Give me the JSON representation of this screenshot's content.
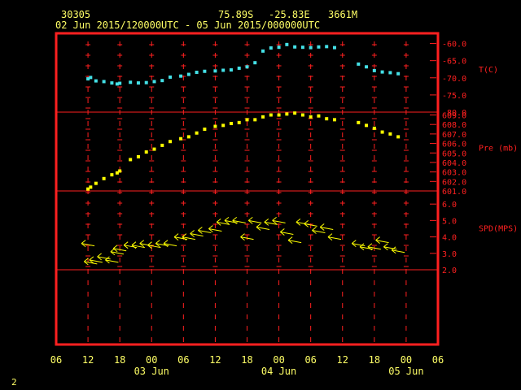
{
  "header": {
    "station": "30305",
    "latitude": "75.89S",
    "longitude": "-25.83E",
    "elevation": "3661M",
    "time_range": "02 Jun 2015/120000UTC - 05 Jun 2015/000000UTC"
  },
  "footer": {
    "page": "2"
  },
  "chart_data": {
    "type": "scatter",
    "x_axis": {
      "tick_labels": [
        "06",
        "12",
        "18",
        "00",
        "06",
        "12",
        "18",
        "00",
        "06",
        "12",
        "18",
        "00",
        "06"
      ],
      "day_labels": [
        "03 Jun",
        "04 Jun",
        "05 Jun"
      ]
    },
    "panels": [
      {
        "name": "T(C)",
        "ylim": [
          -80.0,
          -57.5
        ],
        "tick_labels": [
          "-60.0",
          "-65.0",
          "-70.0",
          "-75.0",
          "-80.0"
        ],
        "tick_values": [
          -60,
          -65,
          -70,
          -75,
          -80
        ],
        "color": "#44e0e6",
        "x": [
          12.0,
          12.5,
          13.5,
          15.0,
          16.5,
          17.5,
          18.0,
          20.0,
          21.5,
          23.0,
          24.5,
          26.0,
          27.5,
          29.5,
          31.0,
          32.5,
          34.0,
          36.0,
          37.5,
          39.0,
          40.5,
          42.0,
          43.5,
          45.0,
          46.5,
          48.0,
          49.5,
          51.0,
          52.5,
          54.0,
          55.5,
          57.0,
          58.5,
          63.0,
          64.5,
          66.0,
          67.5,
          69.0,
          70.5
        ],
        "values": [
          -70.3,
          -69.9,
          -70.9,
          -71.1,
          -71.5,
          -71.8,
          -71.6,
          -71.3,
          -71.5,
          -71.4,
          -71.1,
          -70.8,
          -69.8,
          -69.5,
          -69.0,
          -68.4,
          -68.1,
          -68.0,
          -67.8,
          -67.7,
          -67.2,
          -66.8,
          -65.6,
          -62.2,
          -61.3,
          -61.1,
          -60.3,
          -61.0,
          -61.1,
          -61.2,
          -61.0,
          -60.9,
          -61.2,
          -66.0,
          -66.8,
          -67.9,
          -68.3,
          -68.5,
          -68.8
        ]
      },
      {
        "name": "Pre (mb)",
        "ylim": [
          601.0,
          609.3
        ],
        "tick_labels": [
          "609.0",
          "608.0",
          "607.0",
          "606.0",
          "605.0",
          "604.0",
          "603.0",
          "602.0",
          "601.0"
        ],
        "tick_values": [
          609,
          608,
          607,
          606,
          605,
          604,
          603,
          602,
          601
        ],
        "color": "#ffff00",
        "x": [
          12.0,
          12.5,
          13.5,
          15.0,
          16.5,
          17.5,
          18.0,
          20.0,
          21.5,
          23.0,
          24.5,
          26.0,
          27.5,
          29.5,
          31.0,
          32.5,
          34.0,
          36.0,
          37.5,
          39.0,
          40.5,
          42.0,
          43.5,
          45.0,
          46.5,
          48.0,
          49.5,
          51.0,
          52.5,
          54.0,
          55.5,
          57.0,
          58.5,
          63.0,
          64.5,
          66.0,
          67.5,
          69.0,
          70.5
        ],
        "values": [
          601.2,
          601.4,
          601.8,
          602.3,
          602.7,
          602.9,
          603.1,
          604.3,
          604.6,
          605.1,
          605.4,
          605.8,
          606.2,
          606.5,
          606.7,
          607.1,
          607.5,
          607.8,
          607.9,
          608.1,
          608.2,
          608.5,
          608.5,
          608.8,
          609.0,
          609.0,
          609.1,
          609.2,
          609.0,
          608.8,
          608.9,
          608.6,
          608.5,
          608.2,
          607.9,
          607.6,
          607.2,
          607.0,
          606.7
        ]
      },
      {
        "name": "SPD(MPS)",
        "ylim": [
          2.0,
          6.8
        ],
        "tick_labels": [
          "6.0",
          "5.0",
          "4.0",
          "3.0",
          "2.0"
        ],
        "tick_values": [
          6,
          5,
          4,
          3,
          2
        ],
        "color": "#ffff00",
        "x": [
          12.0,
          12.5,
          13.5,
          15.0,
          16.5,
          17.5,
          18.0,
          20.0,
          21.5,
          23.0,
          24.5,
          26.0,
          27.5,
          29.5,
          31.0,
          32.5,
          34.0,
          36.0,
          37.5,
          39.0,
          40.5,
          42.0,
          43.5,
          45.0,
          46.5,
          48.0,
          49.5,
          51.0,
          52.5,
          54.0,
          55.5,
          57.0,
          58.5,
          63.0,
          64.5,
          66.0,
          67.5,
          69.0,
          70.5
        ],
        "values": [
          3.6,
          2.5,
          2.6,
          2.8,
          2.6,
          3.1,
          3.3,
          3.5,
          3.5,
          3.6,
          3.5,
          3.6,
          3.6,
          4.0,
          4.0,
          4.2,
          4.4,
          4.5,
          4.9,
          5.0,
          5.0,
          4.0,
          5.0,
          4.6,
          4.9,
          5.0,
          4.3,
          3.8,
          4.9,
          4.8,
          4.4,
          4.6,
          4.0,
          3.6,
          3.4,
          3.4,
          3.8,
          3.4,
          3.2
        ]
      }
    ]
  }
}
